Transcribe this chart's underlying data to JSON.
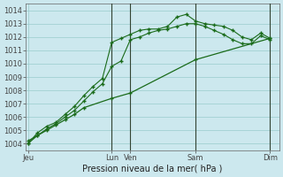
{
  "title": "",
  "xlabel": "Pression niveau de la mer( hPa )",
  "ylabel": "",
  "bg_color": "#cce8ee",
  "grid_color": "#99cccc",
  "line_color": "#1a6b1a",
  "ylim": [
    1003.5,
    1014.5
  ],
  "yticks": [
    1004,
    1005,
    1006,
    1007,
    1008,
    1009,
    1010,
    1011,
    1012,
    1013,
    1014
  ],
  "xlim": [
    -0.1,
    13.5
  ],
  "xtick_positions": [
    0,
    4.5,
    5.5,
    9.0,
    13.0
  ],
  "xtick_labels": [
    "Jeu",
    "Lun",
    "Ven",
    "Sam",
    "Dim"
  ],
  "vlines": [
    4.5,
    5.5,
    9.0,
    13.0
  ],
  "series1_dotted": {
    "x": [
      0,
      0.5,
      1.0,
      1.5,
      2.0,
      2.5,
      3.0,
      3.5,
      4.0,
      4.5,
      5.0,
      5.5,
      6.0,
      6.5,
      7.0,
      7.5,
      8.0,
      8.5,
      9.0,
      9.5,
      10.0,
      10.5,
      11.0,
      11.5,
      12.0,
      12.5,
      13.0
    ],
    "y": [
      1004.0,
      1004.8,
      1005.3,
      1005.6,
      1006.2,
      1006.8,
      1007.6,
      1008.3,
      1008.9,
      1011.6,
      1011.9,
      1012.2,
      1012.5,
      1012.6,
      1012.6,
      1012.8,
      1013.5,
      1013.7,
      1013.2,
      1013.0,
      1012.9,
      1012.8,
      1012.5,
      1012.0,
      1011.8,
      1012.3,
      1011.9
    ]
  },
  "series2_dotted": {
    "x": [
      0,
      0.5,
      1.0,
      1.5,
      2.0,
      2.5,
      3.0,
      3.5,
      4.0,
      4.5,
      5.0,
      5.5,
      6.0,
      6.5,
      7.0,
      7.5,
      8.0,
      8.5,
      9.0,
      9.5,
      10.0,
      10.5,
      11.0,
      11.5,
      12.0,
      12.5,
      13.0
    ],
    "y": [
      1004.0,
      1004.6,
      1005.1,
      1005.5,
      1006.0,
      1006.5,
      1007.2,
      1007.9,
      1008.5,
      1009.8,
      1010.2,
      1011.8,
      1012.0,
      1012.3,
      1012.5,
      1012.6,
      1012.8,
      1013.0,
      1013.0,
      1012.8,
      1012.5,
      1012.2,
      1011.8,
      1011.5,
      1011.5,
      1012.1,
      1011.8
    ]
  },
  "series3_solid": {
    "x": [
      0,
      0.5,
      1.0,
      1.5,
      2.0,
      2.5,
      3.0,
      4.5,
      5.5,
      9.0,
      13.0
    ],
    "y": [
      1004.2,
      1004.6,
      1005.0,
      1005.4,
      1005.8,
      1006.2,
      1006.7,
      1007.4,
      1007.8,
      1010.3,
      1011.9
    ]
  }
}
